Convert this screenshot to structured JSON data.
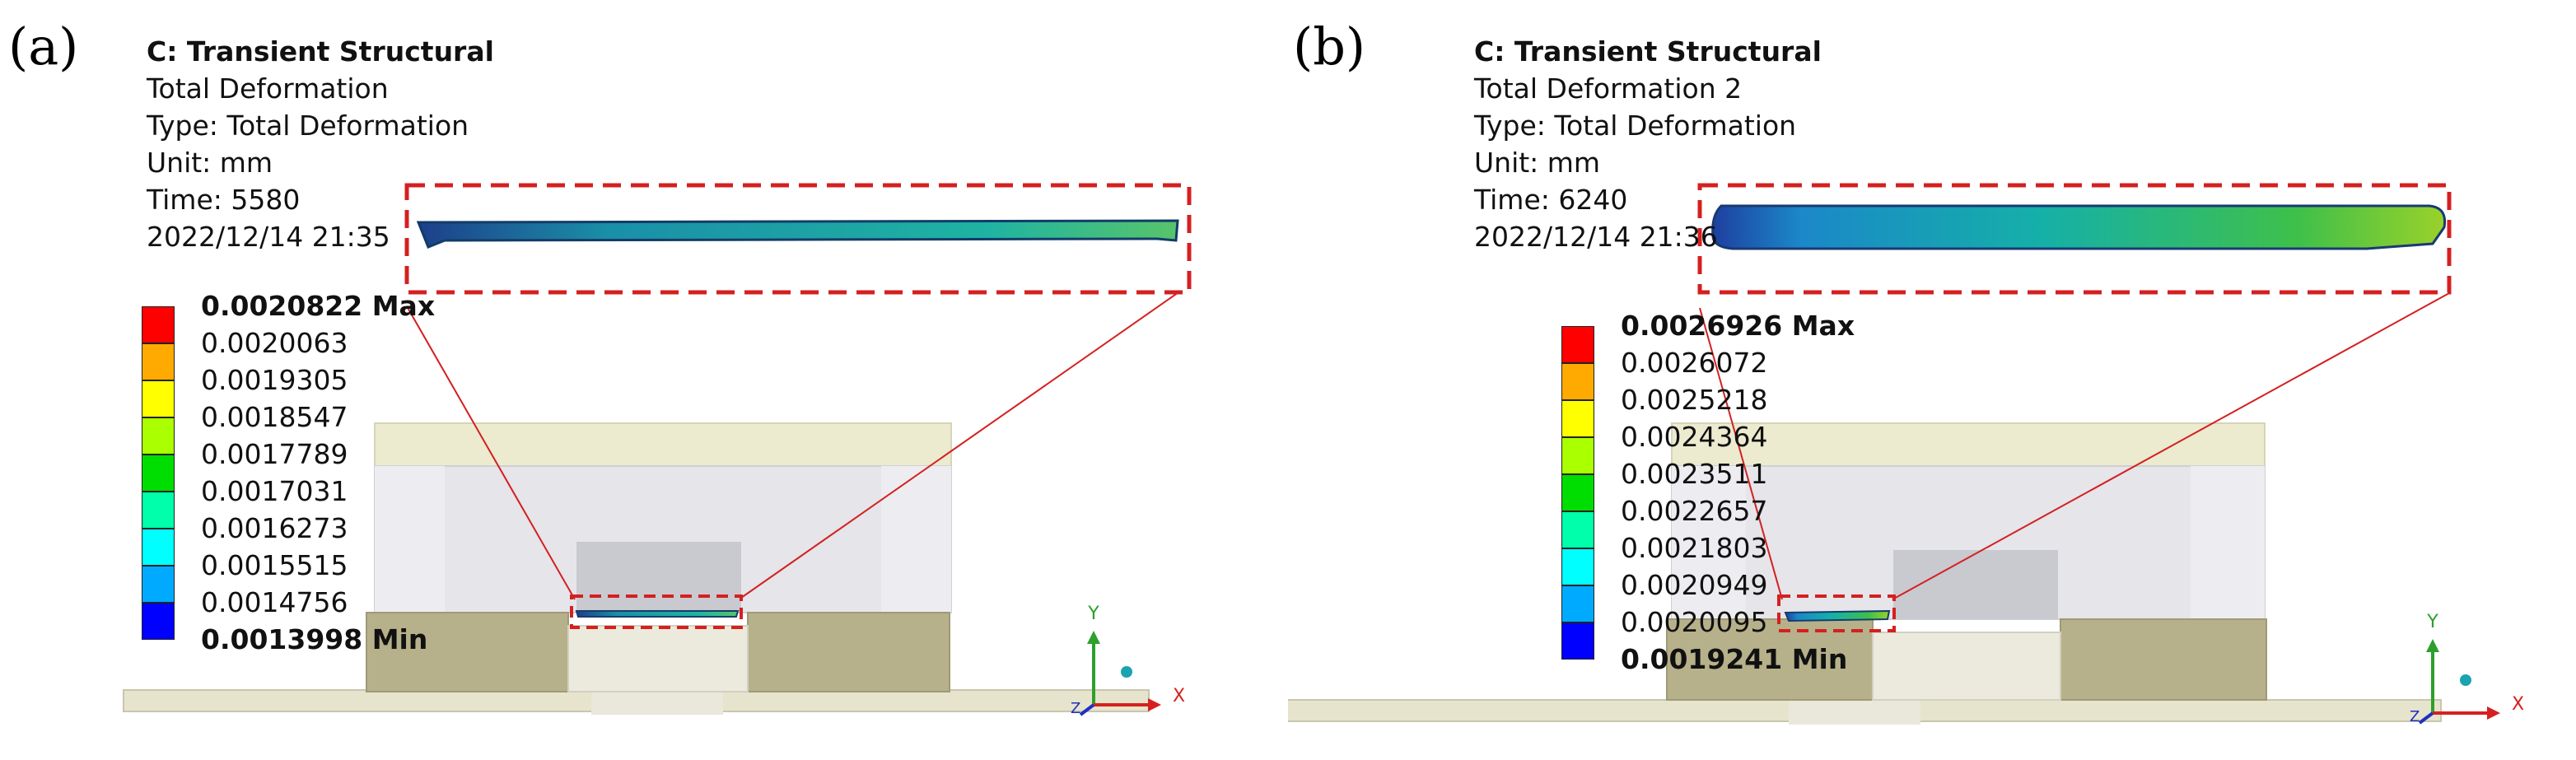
{
  "panels": [
    {
      "label": "(a)",
      "title": "C: Transient Structural",
      "result_name": "Total Deformation",
      "type_line": "Type: Total Deformation",
      "unit_line": "Unit: mm",
      "time_line": "Time: 5580",
      "date_line": "2022/12/14 21:35",
      "legend": {
        "max_label": "0.0020822 Max",
        "values": [
          "0.0020063",
          "0.0019305",
          "0.0018547",
          "0.0017789",
          "0.0017031",
          "0.0016273",
          "0.0015515",
          "0.0014756"
        ],
        "min_label": "0.0013998 Min",
        "colors": [
          "#ff0000",
          "#ffaa00",
          "#ffff00",
          "#aaff00",
          "#00dd00",
          "#00ffaa",
          "#00ffff",
          "#00aaff",
          "#0000ff"
        ]
      }
    },
    {
      "label": "(b)",
      "title": "C: Transient Structural",
      "result_name": "Total Deformation 2",
      "type_line": "Type: Total Deformation",
      "unit_line": "Unit: mm",
      "time_line": "Time: 6240",
      "date_line": "2022/12/14 21:36",
      "legend": {
        "max_label": "0.0026926 Max",
        "values": [
          "0.0026072",
          "0.0025218",
          "0.0024364",
          "0.0023511",
          "0.0022657",
          "0.0021803",
          "0.0020949",
          "0.0020095"
        ],
        "min_label": "0.0019241 Min",
        "colors": [
          "#ff0000",
          "#ffaa00",
          "#ffff00",
          "#aaff00",
          "#00dd00",
          "#00ffaa",
          "#00ffff",
          "#00aaff",
          "#0000ff"
        ]
      }
    }
  ],
  "triad": {
    "x_label": "X",
    "y_label": "Y",
    "z_label": "Z"
  },
  "zoom_frame_color": "#d42020"
}
